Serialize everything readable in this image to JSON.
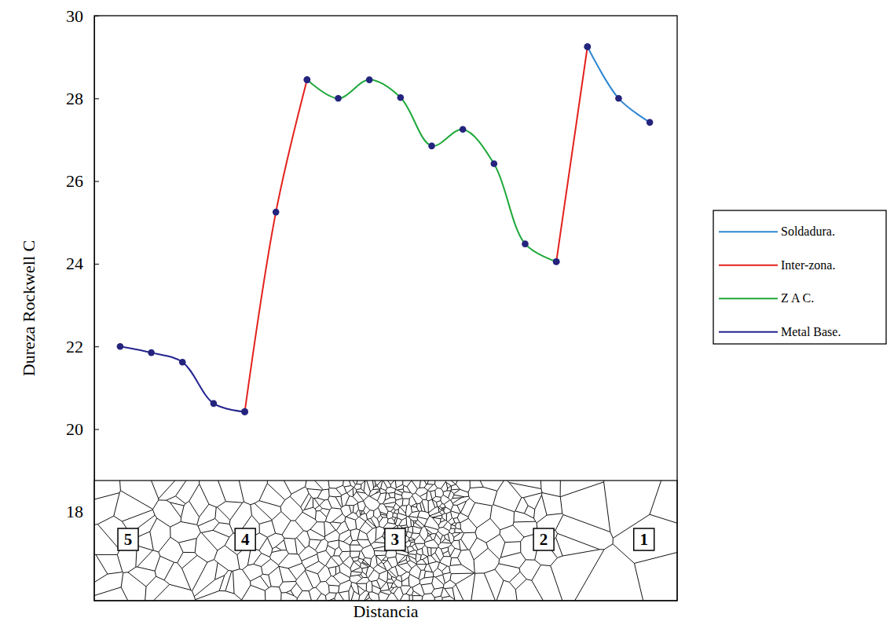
{
  "chart_data": {
    "type": "line",
    "x_label": "Distancia",
    "y_label": "Dureza Rockwell C",
    "x": [
      0,
      1,
      2,
      3,
      4,
      5,
      6,
      7,
      8,
      9,
      10,
      11,
      12,
      13,
      14,
      15,
      16,
      17
    ],
    "xlim": [
      -0.83,
      17.88
    ],
    "ylim": [
      15.85,
      30
    ],
    "yticks": [
      18,
      20,
      22,
      24,
      26,
      28,
      30
    ],
    "tick_labels": "y",
    "legend": "right",
    "marker": "circle",
    "annotations": [
      "5",
      "4",
      "3",
      "2",
      "1"
    ],
    "series": [
      {
        "name": "Soldadura.",
        "color": "#2f86d1",
        "values": [
          null,
          null,
          null,
          null,
          null,
          null,
          null,
          null,
          null,
          null,
          null,
          null,
          null,
          null,
          null,
          29.25,
          28.0,
          27.42
        ]
      },
      {
        "name": "Inter-zona.",
        "color": "#e3211c",
        "values": [
          null,
          null,
          null,
          null,
          20.42,
          25.25,
          28.45,
          null,
          null,
          null,
          null,
          null,
          null,
          null,
          24.05,
          29.25,
          null,
          null
        ]
      },
      {
        "name": "Z A C.",
        "color": "#1ea83a",
        "values": [
          null,
          null,
          null,
          null,
          null,
          null,
          28.45,
          28.0,
          28.45,
          28.02,
          26.85,
          27.25,
          26.42,
          24.48,
          24.05,
          null,
          null,
          null
        ]
      },
      {
        "name": "Metal Base.",
        "color": "#23238f",
        "values": [
          22.0,
          21.85,
          21.62,
          20.62,
          20.42,
          null,
          null,
          null,
          null,
          null,
          null,
          null,
          null,
          null,
          null,
          null,
          null,
          null
        ]
      }
    ]
  }
}
